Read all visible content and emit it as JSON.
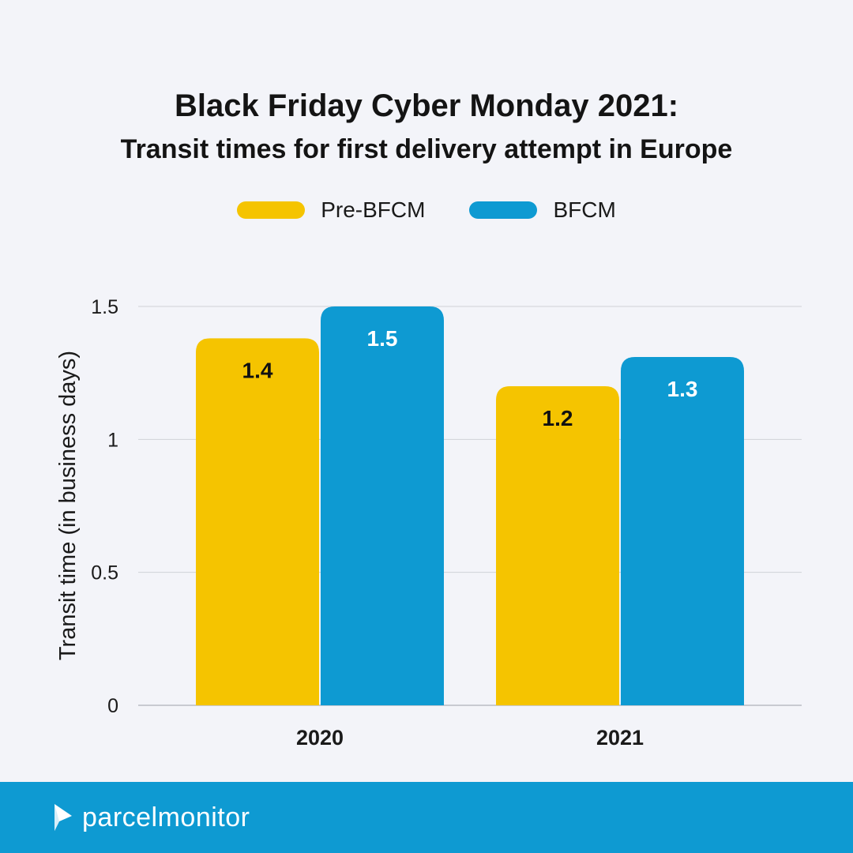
{
  "header": {
    "title_line1": "Black Friday Cyber Monday 2021:",
    "title_line2": "Transit times for first delivery attempt in Europe"
  },
  "legend": {
    "items": [
      {
        "label": "Pre-BFCM",
        "color": "#f5c400"
      },
      {
        "label": "BFCM",
        "color": "#0e9ad2"
      }
    ]
  },
  "chart_data": {
    "type": "bar",
    "title": "Black Friday Cyber Monday 2021: Transit times for first delivery attempt in Europe",
    "categories": [
      "2020",
      "2021"
    ],
    "series": [
      {
        "name": "Pre-BFCM",
        "color": "#f5c400",
        "values": [
          1.38,
          1.2
        ],
        "labels": [
          "1.4",
          "1.2"
        ],
        "label_color": "#111111"
      },
      {
        "name": "BFCM",
        "color": "#0e9ad2",
        "values": [
          1.5,
          1.31
        ],
        "labels": [
          "1.5",
          "1.3"
        ],
        "label_color": "#ffffff"
      }
    ],
    "xlabel": "",
    "ylabel": "Transit time (in business days)",
    "ylim": [
      0,
      1.5
    ],
    "yticks": [
      0,
      0.5,
      1,
      1.5
    ],
    "ytick_labels": [
      "0",
      "0.5",
      "1",
      "1.5"
    ],
    "grid": true,
    "legend_position": "top-center"
  },
  "footer": {
    "brand": "parcelmonitor",
    "background": "#0e9ad2"
  }
}
